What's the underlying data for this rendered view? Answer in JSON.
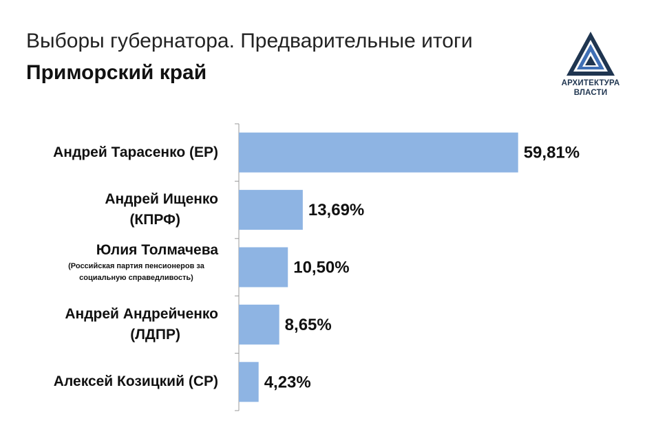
{
  "header": {
    "title": "Выборы губернатора. Предварительные итоги",
    "subtitle": "Приморский край"
  },
  "logo": {
    "icon": "triangle-logo-icon",
    "line1": "АРХИТЕКТУРА",
    "line2": "ВЛАСТИ",
    "color": "#1f3550"
  },
  "chart_data": {
    "type": "bar",
    "orientation": "horizontal",
    "categories": [
      {
        "lines": [
          "Андрей Тарасенко (ЕР)"
        ],
        "note": ""
      },
      {
        "lines": [
          "Андрей Ищенко",
          "(КПРФ)"
        ],
        "note": ""
      },
      {
        "lines": [
          "Юлия Толмачева"
        ],
        "note": "(Российская партия пенсионеров за социальную справедливость)"
      },
      {
        "lines": [
          "Андрей Андрейченко",
          "(ЛДПР)"
        ],
        "note": ""
      },
      {
        "lines": [
          "Алексей Козицкий (СР)"
        ],
        "note": ""
      }
    ],
    "values": [
      59.81,
      13.69,
      10.5,
      8.65,
      4.23
    ],
    "value_labels": [
      "59,81%",
      "13,69%",
      "10,50%",
      "8,65%",
      "4,23%"
    ],
    "bar_color": "#8eb4e3",
    "xlim": [
      0,
      60
    ],
    "grid": false,
    "legend": "none"
  }
}
